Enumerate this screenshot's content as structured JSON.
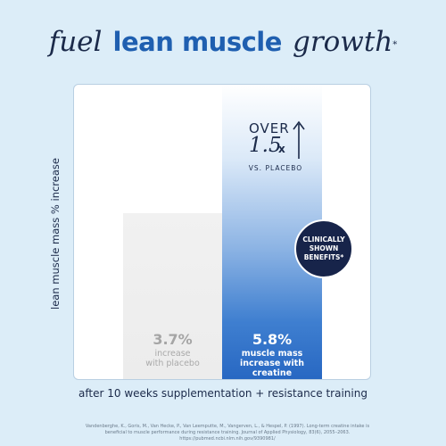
{
  "header": {
    "title_script_1": "fuel",
    "title_bold": "lean muscle",
    "title_script_2": "growth",
    "title_mark": "*"
  },
  "badge": {
    "line1": "CLINICALLY",
    "line2": "SHOWN",
    "line3": "BENEFITS*"
  },
  "callout": {
    "over": "OVER",
    "multiplier": "1.5",
    "x": "x",
    "vs": "VS. PLACEBO"
  },
  "footer": {
    "xlabel": "after 10 weeks supplementation + resistance training",
    "citation": "Vandenberghe, K., Goris, M., Van Hecke, P., Van Leemputte, M., Vangerven, L., & Hespel, P. (1997). Long-term creatine intake is beneficial to muscle performance during resistance training. Journal of Applied Physiology, 83(6), 2055–2063. https://pubmed.ncbi.nlm.nih.gov/9390981/"
  },
  "chart_data": {
    "type": "bar",
    "categories": [
      "with placebo",
      "increase with creatine"
    ],
    "values": [
      3.7,
      5.8
    ],
    "value_labels": [
      "3.7%",
      "5.8%"
    ],
    "category_sublabels": [
      [
        "increase",
        "with placebo"
      ],
      [
        "muscle mass",
        "increase with creatine"
      ]
    ],
    "ylabel": "lean muscle mass % increase",
    "xlabel": "after 10 weeks supplementation + resistance training",
    "colors": [
      "#ececec",
      "#2767c2"
    ],
    "grid": false
  }
}
